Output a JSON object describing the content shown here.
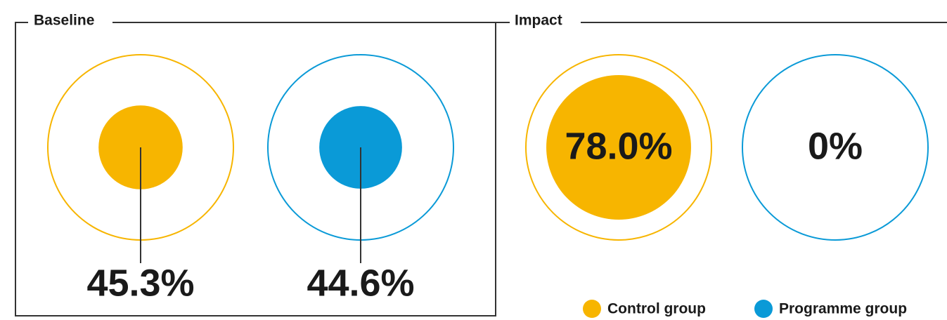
{
  "chart_data": {
    "type": "proportional-circle",
    "categories": [
      "Baseline",
      "Impact"
    ],
    "ylim": [
      0,
      100
    ],
    "series": [
      {
        "name": "Control group",
        "color": "#f7b500",
        "values": [
          45.3,
          78.0
        ],
        "value_labels": [
          "45.3%",
          "78.0%"
        ]
      },
      {
        "name": "Programme group",
        "color": "#0a9ad7",
        "values": [
          44.6,
          0
        ],
        "value_labels": [
          "44.6%",
          "0%"
        ]
      }
    ]
  }
}
